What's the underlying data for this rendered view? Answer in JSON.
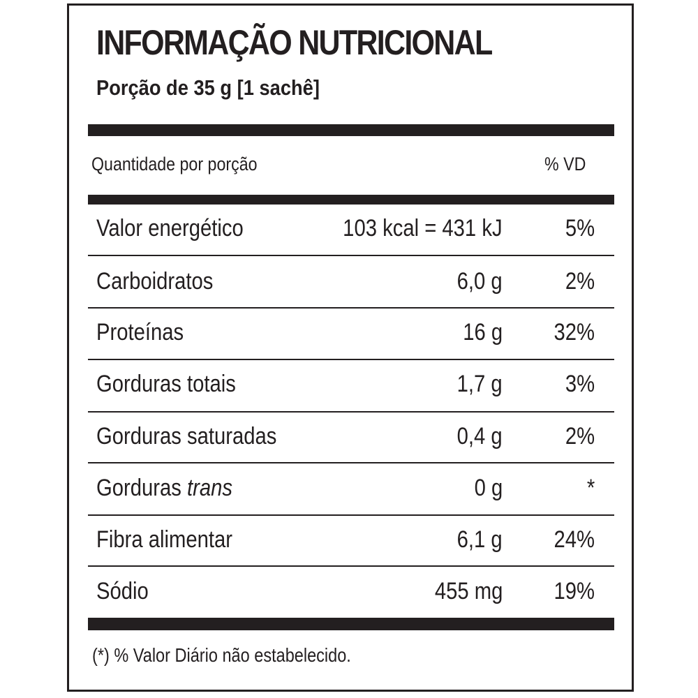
{
  "title": "INFORMAÇÃO NUTRICIONAL",
  "portion": "Porção de 35 g  [1 sachê]",
  "header": {
    "left": "Quantidade por porção",
    "right": "% VD"
  },
  "rows": [
    {
      "name": "Valor energético",
      "amount": "103 kcal = 431 kJ",
      "vd": "5%"
    },
    {
      "name": "Carboidratos",
      "amount": "6,0 g",
      "vd": "2%"
    },
    {
      "name": "Proteínas",
      "amount": "16 g",
      "vd": "32%"
    },
    {
      "name": "Gorduras totais",
      "amount": "1,7 g",
      "vd": "3%"
    },
    {
      "name": "Gorduras saturadas",
      "amount": "0,4 g",
      "vd": "2%"
    },
    {
      "name_prefix": "Gorduras ",
      "name_italic": "trans",
      "amount": "0 g",
      "vd": "*"
    },
    {
      "name": "Fibra alimentar",
      "amount": "6,1 g",
      "vd": "24%"
    },
    {
      "name": "Sódio",
      "amount": "455 mg",
      "vd": "19%"
    }
  ],
  "footnote": "(*) % Valor Diário não estabelecido."
}
